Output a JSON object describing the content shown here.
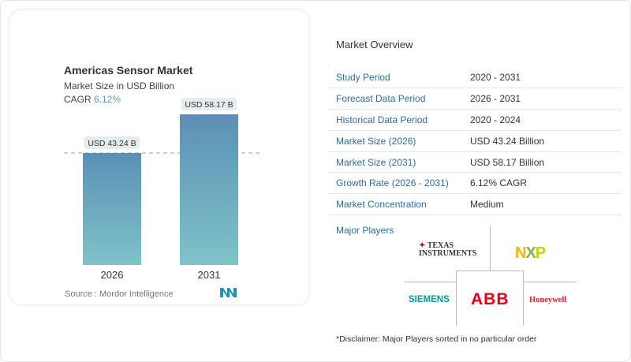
{
  "chart": {
    "title": "Americas Sensor Market",
    "subtitle": "Market Size in USD Billion",
    "cagr_label": "CAGR",
    "cagr_value": "6.12%",
    "source": "Source :  Mordor Intelligence"
  },
  "chart_data": {
    "type": "bar",
    "title": "Americas Sensor Market",
    "categories": [
      "2026",
      "2031"
    ],
    "values": [
      43.24,
      58.17
    ],
    "data_labels": [
      "USD 43.24 B",
      "USD 58.17 B"
    ],
    "ylim": [
      0,
      60
    ],
    "colors": {
      "bar_top": "#5b8fb5",
      "bar_bottom": "#7fc3c9"
    }
  },
  "overview": {
    "heading": "Market Overview",
    "rows": [
      {
        "label": "Study Period",
        "value": "2020 - 2031"
      },
      {
        "label": "Forecast Data Period",
        "value": "2026 - 2031"
      },
      {
        "label": "Historical Data Period",
        "value": "2020 - 2024"
      },
      {
        "label": "Market Size (2026)",
        "value": "USD 43.24 Billion"
      },
      {
        "label": "Market Size (2031)",
        "value": "USD 58.17 Billion"
      },
      {
        "label": "Growth Rate (2026 - 2031)",
        "value": "6.12% CAGR"
      },
      {
        "label": "Market Concentration",
        "value": "Medium"
      }
    ]
  },
  "players": {
    "heading": "Major Players",
    "logos": [
      "Texas Instruments",
      "NXP",
      "Siemens",
      "ABB",
      "Honeywell"
    ],
    "disclaimer": "*Disclaimer: Major Players sorted in no particular order"
  }
}
